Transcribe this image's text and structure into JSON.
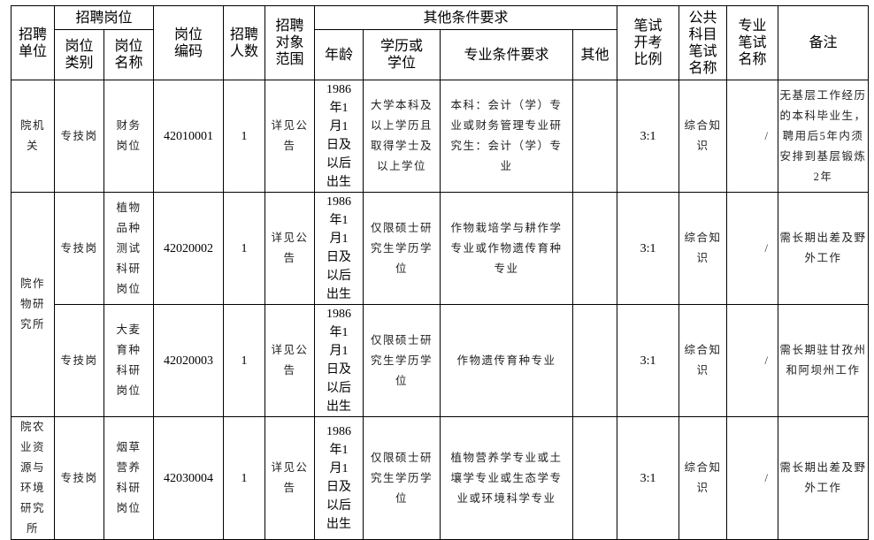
{
  "header": {
    "unit": "招聘单位",
    "post_group": "招聘岗位",
    "post_category": "岗位类别",
    "post_name": "岗位名称",
    "post_code": "岗位编码",
    "count": "招聘人数",
    "target": "招聘对象范围",
    "other_group": "其他条件要求",
    "age": "年龄",
    "education": "学历或学位",
    "major": "专业条件要求",
    "other": "其他",
    "ratio": "笔试开考比例",
    "public_exam": "公共科目笔试名称",
    "major_exam": "专业笔试名称",
    "remarks": "备注"
  },
  "rows": [
    {
      "unit": "院机关",
      "category": "专技岗",
      "name": "财务岗位",
      "code": "42010001",
      "count": "1",
      "target": "详见公告",
      "age": "1986年1月1日及以后出生",
      "education": "大学本科及以上学历且取得学士及以上学位",
      "major": "本科：会计（学）专业或财务管理专业研究生：会计（学）专业",
      "other": "",
      "ratio": "3:1",
      "public_exam": "综合知识",
      "major_exam": "/",
      "remarks": "无基层工作经历的本科毕业生，聘用后5年内须安排到基层锻炼2年"
    },
    {
      "unit": "院作物研究所",
      "category": "专技岗",
      "name": "植物品种测试科研岗位",
      "code": "42020002",
      "count": "1",
      "target": "详见公告",
      "age": "1986年1月1日及以后出生",
      "education": "仅限硕士研究生学历学位",
      "major": "作物栽培学与耕作学专业或作物遗传育种专业",
      "other": "",
      "ratio": "3:1",
      "public_exam": "综合知识",
      "major_exam": "/",
      "remarks": "需长期出差及野外工作"
    },
    {
      "unit": "",
      "category": "专技岗",
      "name": "大麦育种科研岗位",
      "code": "42020003",
      "count": "1",
      "target": "详见公告",
      "age": "1986年1月1日及以后出生",
      "education": "仅限硕士研究生学历学位",
      "major": "作物遗传育种专业",
      "other": "",
      "ratio": "3:1",
      "public_exam": "综合知识",
      "major_exam": "/",
      "remarks": "需长期驻甘孜州和阿坝州工作"
    },
    {
      "unit": "院农业资源与环境研究所",
      "category": "专技岗",
      "name": "烟草营养科研岗位",
      "code": "42030004",
      "count": "1",
      "target": "详见公告",
      "age": "1986年1月1日及以后出生",
      "education": "仅限硕士研究生学历学位",
      "major": "植物营养学专业或土壤学专业或生态学专业或环境科学专业",
      "other": "",
      "ratio": "3:1",
      "public_exam": "综合知识",
      "major_exam": "/",
      "remarks": "需长期出差及野外工作"
    }
  ]
}
